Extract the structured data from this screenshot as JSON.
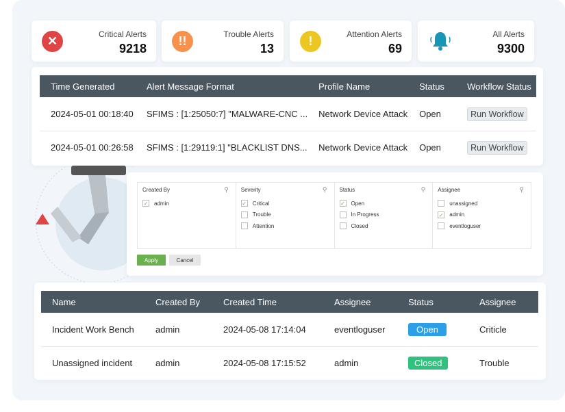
{
  "stats": [
    {
      "label": "Critical Alerts",
      "value": "9218",
      "icon": "close-icon",
      "color": "#e04444",
      "glyph": "✕"
    },
    {
      "label": "Trouble Alerts",
      "value": "13",
      "icon": "double-exclamation-icon",
      "color": "#f7914c",
      "glyph": "!!"
    },
    {
      "label": "Attention Alerts",
      "value": "69",
      "icon": "exclamation-icon",
      "color": "#ecc623",
      "glyph": "!"
    },
    {
      "label": "All Alerts",
      "value": "9300",
      "icon": "bell-icon",
      "color": "#1796b8",
      "glyph": "🔔"
    }
  ],
  "alerts": {
    "headers": [
      "Time Generated",
      "Alert Message Format",
      "Profile Name",
      "Status",
      "Workflow Status"
    ],
    "rows": [
      [
        "2024-05-01 00:18:40",
        "SFIMS : [1:25050:7] \"MALWARE-CNC ...",
        "Network Device Attack",
        "Open",
        "Run Workflow"
      ],
      [
        "2024-05-01 00:26:58",
        "SFIMS : [1:29119:1] \"BLACKLIST DNS...",
        "Network Device Attack",
        "Open",
        "Run Workflow"
      ]
    ]
  },
  "filter": {
    "columns": [
      {
        "title": "Created By",
        "options": [
          {
            "label": "admin",
            "checked": true
          }
        ]
      },
      {
        "title": "Severity",
        "options": [
          {
            "label": "Critical",
            "checked": true
          },
          {
            "label": "Trouble",
            "checked": false
          },
          {
            "label": "Attention",
            "checked": false
          }
        ]
      },
      {
        "title": "Status",
        "options": [
          {
            "label": "Open",
            "checked": true
          },
          {
            "label": "In Progress",
            "checked": false
          },
          {
            "label": "Closed",
            "checked": false
          }
        ]
      },
      {
        "title": "Assignee",
        "options": [
          {
            "label": "unassigned",
            "checked": false
          },
          {
            "label": "admin",
            "checked": true
          },
          {
            "label": "eventloguser",
            "checked": false
          }
        ]
      }
    ],
    "apply": "Apply",
    "cancel": "Cancel"
  },
  "incidents": {
    "headers": [
      "Name",
      "Created By",
      "Created Time",
      "Assignee",
      "Status",
      "Assignee"
    ],
    "rows": [
      [
        "Incident Work Bench",
        "admin",
        "2024-05-08 17:14:04",
        "eventloguser",
        "Open",
        "Criticle"
      ],
      [
        "Unassigned incident",
        "admin",
        "2024-05-08 17:15:52",
        "admin",
        "Closed",
        "Trouble"
      ]
    ],
    "status_colors": {
      "Open": "#2b9fe8",
      "Closed": "#2ec27e"
    }
  }
}
